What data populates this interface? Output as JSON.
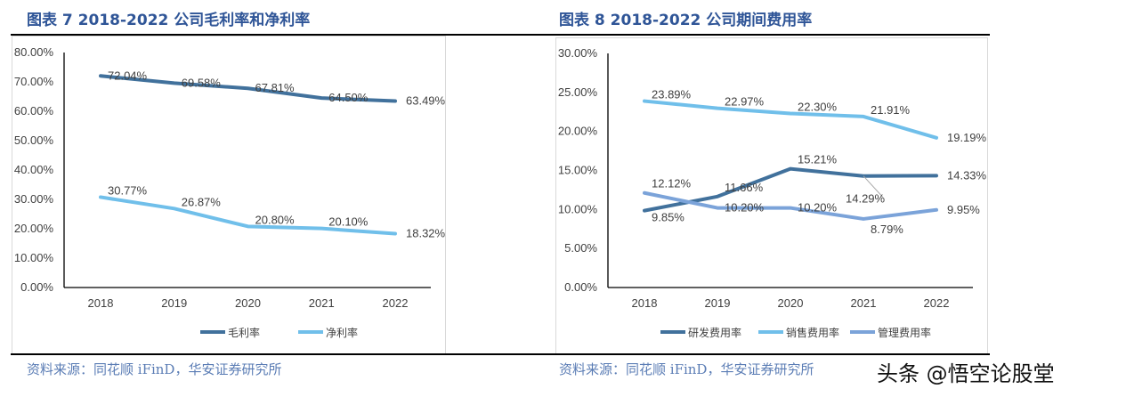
{
  "chart_data": [
    {
      "type": "line",
      "title": "图表 7 2018-2022 公司毛利率和净利率",
      "categories": [
        "2018",
        "2019",
        "2020",
        "2021",
        "2022"
      ],
      "yticks": [
        "0.00%",
        "10.00%",
        "20.00%",
        "30.00%",
        "40.00%",
        "50.00%",
        "60.00%",
        "70.00%",
        "80.00%"
      ],
      "ylim": [
        0,
        80
      ],
      "series": [
        {
          "name": "毛利率",
          "color": "#41719C",
          "values": [
            72.04,
            69.58,
            67.81,
            64.5,
            63.49
          ],
          "labels": [
            "72.04%",
            "69.58%",
            "67.81%",
            "64.50%",
            "63.49%"
          ]
        },
        {
          "name": "净利率",
          "color": "#70BFEA",
          "values": [
            30.77,
            26.87,
            20.8,
            20.1,
            18.32
          ],
          "labels": [
            "30.77%",
            "26.87%",
            "20.80%",
            "20.10%",
            "18.32%"
          ]
        }
      ],
      "legend": "bottom",
      "grid": false,
      "source": "资料来源：同花顺 iFinD，华安证券研究所"
    },
    {
      "type": "line",
      "title": "图表 8 2018-2022 公司期间费用率",
      "categories": [
        "2018",
        "2019",
        "2020",
        "2021",
        "2022"
      ],
      "yticks": [
        "0.00%",
        "5.00%",
        "10.00%",
        "15.00%",
        "20.00%",
        "25.00%",
        "30.00%"
      ],
      "ylim": [
        0,
        30
      ],
      "series": [
        {
          "name": "研发费用率",
          "color": "#41719C",
          "values": [
            9.85,
            11.66,
            15.21,
            14.29,
            14.33
          ],
          "labels": [
            "9.85%",
            "11.66%",
            "15.21%",
            "14.29%",
            "14.33%"
          ]
        },
        {
          "name": "销售费用率",
          "color": "#70BFEA",
          "values": [
            23.89,
            22.97,
            22.3,
            21.91,
            19.19
          ],
          "labels": [
            "23.89%",
            "22.97%",
            "22.30%",
            "21.91%",
            "19.19%"
          ]
        },
        {
          "name": "管理费用率",
          "color": "#7BA3D9",
          "values": [
            12.12,
            10.2,
            10.2,
            8.79,
            9.95
          ],
          "labels": [
            "12.12%",
            "10.20%",
            "10.20%",
            "8.79%",
            "9.95%"
          ]
        }
      ],
      "legend": "bottom",
      "grid": false,
      "source": "资料来源：同花顺 iFinD，华安证券研究所"
    }
  ],
  "watermark": "头条 @悟空论股堂"
}
